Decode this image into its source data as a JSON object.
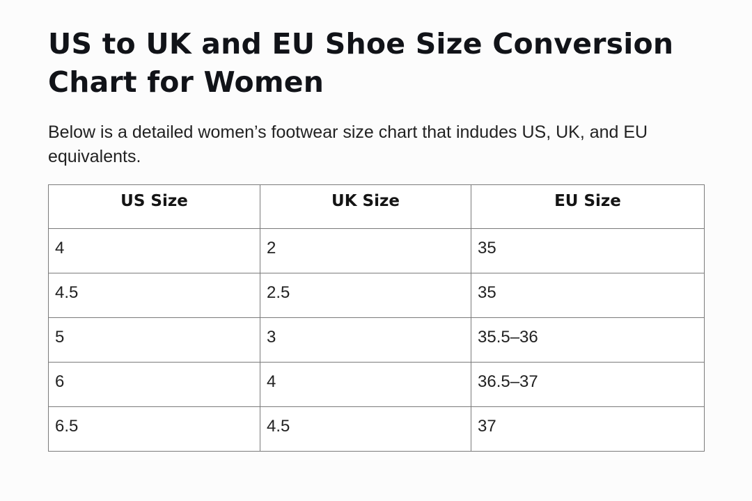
{
  "document": {
    "title": "US to UK and EU Shoe Size Conversion Chart for Women",
    "intro": "Below is a detailed women’s footwear size chart that indudes US, UK, and EU equivalents."
  },
  "table": {
    "headers": [
      "US Size",
      "UK Size",
      "EU Size"
    ],
    "rows": [
      [
        "4",
        "2",
        "35"
      ],
      [
        "4.5",
        "2.5",
        "35"
      ],
      [
        "5",
        "3",
        "35.5–36"
      ],
      [
        "6",
        "4",
        "36.5–37"
      ],
      [
        "6.5",
        "4.5",
        "37"
      ]
    ]
  }
}
